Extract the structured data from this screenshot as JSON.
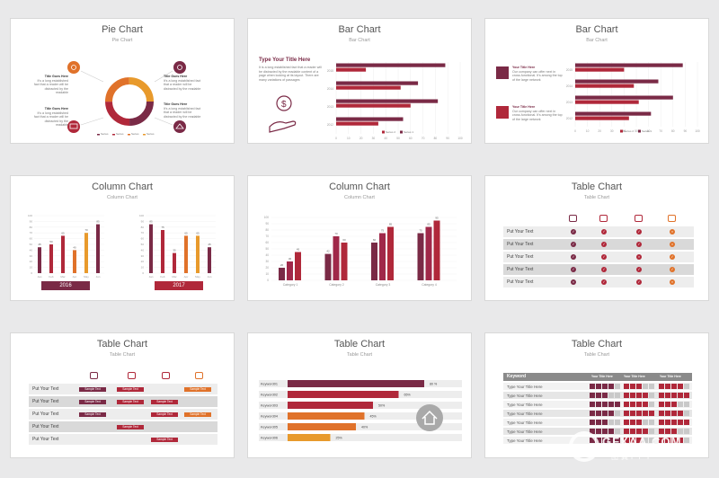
{
  "colors": {
    "maroon": "#7a2a46",
    "red": "#b0283a",
    "orange": "#e0722a",
    "amber": "#e89a2c",
    "grey": "#c9c9c9"
  },
  "slides": [
    {
      "title": "Pie Chart",
      "subtitle": "Pie Chart",
      "blocks": [
        {
          "heading": "Title Goes Here",
          "text": "It's a long established fact that a reader will be distracted by the readable"
        },
        {
          "heading": "Title Goes Here",
          "text": "It's a long established fact that a reader will be distracted by the readable"
        },
        {
          "heading": "Title Goes Here",
          "text": "It's a long established fact that a reader will be distracted by the readable"
        },
        {
          "heading": "Title Goes Here",
          "text": "It's a long established fact that a reader will be distracted by the readable"
        }
      ],
      "legend": [
        "Series",
        "Series",
        "Series",
        "Series"
      ]
    },
    {
      "title": "Bar Chart",
      "subtitle": "Bar Chart",
      "heading": "Type Your Title Here",
      "text": "It is a long established fact that a reader will be distracted by the readable content of a page when looking at its layout. There are many variations of passages",
      "legend": [
        "Series 2",
        "Series 1"
      ]
    },
    {
      "title": "Bar Chart",
      "subtitle": "Bar Chart",
      "items": [
        {
          "heading": "Your Title Here",
          "text": "Our company can offer next in cross-functional. It's among the top of the large network"
        },
        {
          "heading": "Your Title Here",
          "text": "Our company can offer next in cross-functional. It's among the top of the large network"
        }
      ],
      "legend": [
        "Series 2",
        "Series 1"
      ]
    },
    {
      "title": "Column Chart",
      "subtitle": "Column Chart",
      "years": [
        "2016",
        "2017"
      ]
    },
    {
      "title": "Column Chart",
      "subtitle": "Column Chart"
    },
    {
      "title": "Table Chart",
      "subtitle": "Table Chart",
      "row_label": "Put Your Text"
    },
    {
      "title": "Table Chart",
      "subtitle": "Table Chart",
      "row_label": "Put Your Text",
      "pill": "Sample Text"
    },
    {
      "title": "Table Chart",
      "subtitle": "Table Chart"
    },
    {
      "title": "Table Chart",
      "subtitle": "Table Chart",
      "header": [
        "Keyword",
        "Your Title Here",
        "Your Title Here",
        "Your Title Here"
      ],
      "row_label": "Type Your Title Here"
    }
  ],
  "watermark": {
    "brand": "GFXAA.COM",
    "sub": "图翼PPT"
  },
  "chart_data": [
    {
      "type": "pie",
      "values": [
        25,
        25,
        25,
        25
      ],
      "legend": [
        "Series",
        "Series",
        "Series",
        "Series"
      ]
    },
    {
      "type": "bar",
      "categories": [
        "2015",
        "2014",
        "2013",
        "2012"
      ],
      "series": [
        {
          "name": "Series 2",
          "values": [
            24,
            52,
            60,
            34
          ]
        },
        {
          "name": "Series 1",
          "values": [
            88,
            66,
            82,
            54
          ]
        }
      ],
      "xticks": [
        "0",
        "10",
        "20",
        "30",
        "40",
        "50",
        "60",
        "70",
        "80",
        "90",
        "100"
      ],
      "xlim": [
        0,
        100
      ]
    },
    {
      "type": "bar",
      "categories": [
        "2015",
        "2014",
        "2013",
        "2012"
      ],
      "series": [
        {
          "name": "Series 2",
          "values": [
            40,
            48,
            52,
            44
          ]
        },
        {
          "name": "Series 1",
          "values": [
            88,
            68,
            80,
            62
          ]
        }
      ],
      "xticks": [
        "0",
        "10",
        "20",
        "30",
        "40",
        "50",
        "60",
        "70",
        "80",
        "90",
        "100"
      ],
      "xlim": [
        0,
        100
      ]
    },
    {
      "type": "bar",
      "categories": [
        "Jan",
        "Feb",
        "Mar",
        "Apr",
        "May",
        "Jun"
      ],
      "groups": [
        {
          "year": "2016",
          "values": [
            45,
            50,
            65,
            40,
            70,
            85
          ]
        },
        {
          "year": "2017",
          "values": [
            85,
            75,
            35,
            65,
            65,
            45
          ]
        }
      ],
      "yticks": [
        "0",
        "10",
        "20",
        "30",
        "40",
        "50",
        "60",
        "70",
        "80",
        "90",
        "100"
      ],
      "ylim": [
        0,
        100
      ]
    },
    {
      "type": "bar",
      "categories": [
        "Category 1",
        "Category 2",
        "Category 3",
        "Category 4"
      ],
      "series": [
        {
          "values": [
            20,
            42,
            60,
            75
          ]
        },
        {
          "values": [
            30,
            70,
            75,
            85
          ]
        },
        {
          "values": [
            45,
            60,
            85,
            95
          ]
        }
      ],
      "yticks": [
        "0",
        "10",
        "20",
        "30",
        "40",
        "50",
        "60",
        "70",
        "80",
        "90",
        "100"
      ],
      "ylim": [
        0,
        100
      ]
    },
    {
      "type": "bar",
      "categories": [
        "Keyword01",
        "Keyword02",
        "Keyword03",
        "Keyword04",
        "Keyword05",
        "Keyword06"
      ],
      "values": [
        80,
        65,
        50,
        45,
        40,
        25
      ],
      "labels": [
        "80 %",
        "65%",
        "50%",
        "45%",
        "40%",
        "25%"
      ]
    }
  ]
}
